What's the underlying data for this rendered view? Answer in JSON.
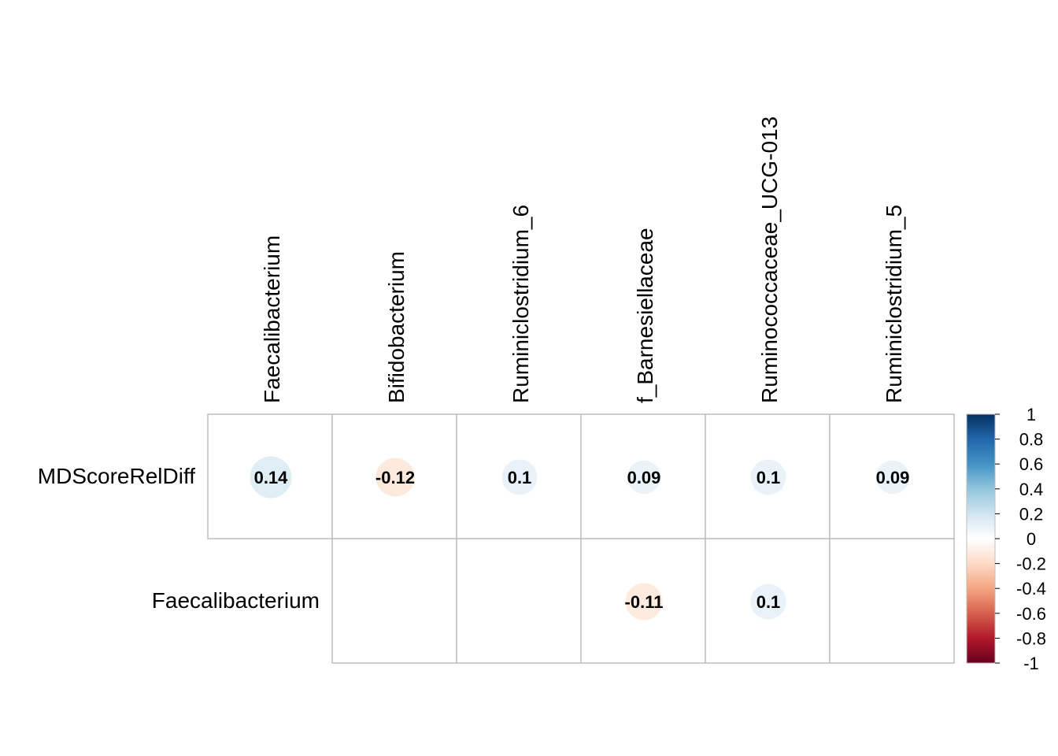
{
  "chart_data": {
    "type": "heatmap",
    "title": "",
    "rows": [
      "MDScoreRelDiff",
      "Faecalibacterium"
    ],
    "columns": [
      "Faecalibacterium",
      "Bifidobacterium",
      "Ruminiclostridium_6",
      "f_Barnesiellaceae",
      "Ruminococcaceae_UCG-013",
      "Ruminiclostridium_5"
    ],
    "values": [
      [
        0.14,
        -0.12,
        0.1,
        0.09,
        0.1,
        0.09
      ],
      [
        null,
        null,
        null,
        -0.11,
        0.1,
        null
      ]
    ],
    "value_labels": [
      [
        "0.14",
        "-0.12",
        "0.1",
        "0.09",
        "0.1",
        "0.09"
      ],
      [
        "",
        "",
        "",
        "-0.11",
        "0.1",
        ""
      ]
    ],
    "lower_triangle_hidden": true,
    "glyph": "circle",
    "colorbar": {
      "range": [
        -1,
        1
      ],
      "ticks": [
        "1",
        "0.8",
        "0.6",
        "0.4",
        "0.2",
        "0",
        "-0.2",
        "-0.4",
        "-0.6",
        "-0.8",
        "-1"
      ],
      "colors": [
        "#67001F",
        "#B2182B",
        "#D6604D",
        "#F4A582",
        "#FDDBC7",
        "#FFFFFF",
        "#D1E5F0",
        "#92C5DE",
        "#4393C3",
        "#2166AC",
        "#053061"
      ]
    },
    "grid_color": "#BEBEBE"
  }
}
